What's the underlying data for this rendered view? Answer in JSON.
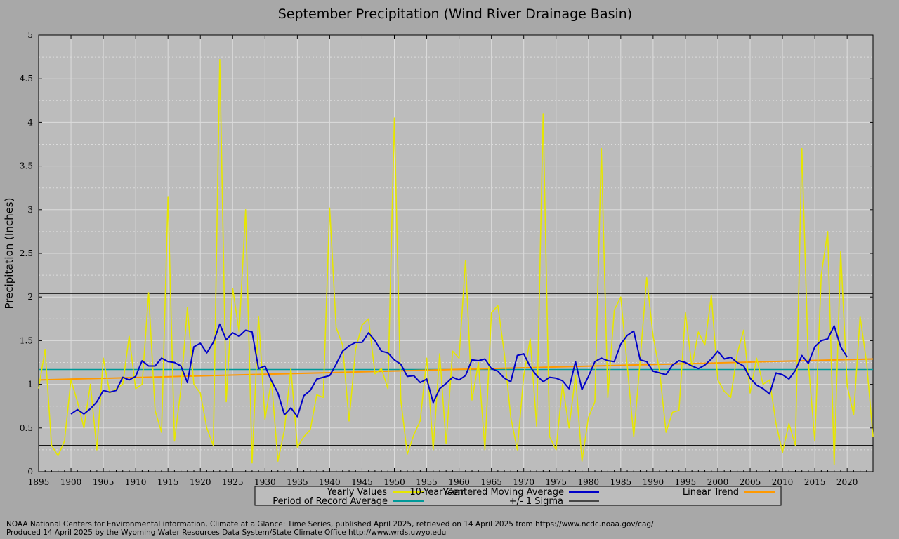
{
  "chart_data": {
    "type": "line",
    "title": "September Precipitation (Wind River Drainage Basin)",
    "xlabel": "Year",
    "ylabel": "Precipitation (Inches)",
    "xlim": [
      1895,
      2024
    ],
    "ylim": [
      0,
      5
    ],
    "grid": true,
    "x_ticks": [
      "1895",
      "1900",
      "1905",
      "1910",
      "1915",
      "1920",
      "1925",
      "1930",
      "1935",
      "1940",
      "1945",
      "1950",
      "1955",
      "1960",
      "1965",
      "1970",
      "1975",
      "1980",
      "1985",
      "1990",
      "1995",
      "2000",
      "2005",
      "2010",
      "2015",
      "2020"
    ],
    "y_ticks": [
      "0",
      "0.5",
      "1",
      "1.5",
      "2",
      "2.5",
      "3",
      "3.5",
      "4",
      "4.5",
      "5"
    ],
    "years": [
      1895,
      1896,
      1897,
      1898,
      1899,
      1900,
      1901,
      1902,
      1903,
      1904,
      1905,
      1906,
      1907,
      1908,
      1909,
      1910,
      1911,
      1912,
      1913,
      1914,
      1915,
      1916,
      1917,
      1918,
      1919,
      1920,
      1921,
      1922,
      1923,
      1924,
      1925,
      1926,
      1927,
      1928,
      1929,
      1930,
      1931,
      1932,
      1933,
      1934,
      1935,
      1936,
      1937,
      1938,
      1939,
      1940,
      1941,
      1942,
      1943,
      1944,
      1945,
      1946,
      1947,
      1948,
      1949,
      1950,
      1951,
      1952,
      1953,
      1954,
      1955,
      1956,
      1957,
      1958,
      1959,
      1960,
      1961,
      1962,
      1963,
      1964,
      1965,
      1966,
      1967,
      1968,
      1969,
      1970,
      1971,
      1972,
      1973,
      1974,
      1975,
      1976,
      1977,
      1978,
      1979,
      1980,
      1981,
      1982,
      1983,
      1984,
      1985,
      1986,
      1987,
      1988,
      1989,
      1990,
      1991,
      1992,
      1993,
      1994,
      1995,
      1996,
      1997,
      1998,
      1999,
      2000,
      2001,
      2002,
      2003,
      2004,
      2005,
      2006,
      2007,
      2008,
      2009,
      2010,
      2011,
      2012,
      2013,
      2014,
      2015,
      2016,
      2017,
      2018,
      2019,
      2020,
      2021,
      2022,
      2023,
      2024
    ],
    "series": [
      {
        "name": "Yearly Values",
        "color": "#e6e600",
        "values": [
          0.95,
          1.4,
          0.3,
          0.18,
          0.35,
          1.05,
          0.8,
          0.5,
          1.0,
          0.25,
          1.3,
          0.9,
          0.95,
          1.0,
          1.55,
          0.95,
          1.0,
          2.05,
          0.7,
          0.45,
          3.15,
          0.35,
          0.95,
          1.88,
          1.0,
          0.9,
          0.5,
          0.3,
          4.72,
          0.8,
          2.1,
          1.6,
          3.0,
          0.1,
          1.78,
          0.6,
          1.05,
          0.12,
          0.48,
          1.18,
          0.28,
          0.4,
          0.48,
          0.88,
          0.85,
          3.02,
          1.65,
          1.45,
          0.58,
          1.4,
          1.68,
          1.75,
          1.12,
          1.18,
          0.95,
          4.05,
          0.82,
          0.2,
          0.42,
          0.58,
          1.3,
          0.25,
          1.35,
          0.32,
          1.38,
          1.3,
          2.42,
          0.82,
          1.25,
          0.25,
          1.82,
          1.9,
          1.35,
          0.62,
          0.25,
          1.1,
          1.52,
          0.52,
          4.1,
          0.4,
          0.25,
          1.0,
          0.5,
          1.1,
          0.12,
          0.62,
          0.8,
          3.7,
          0.85,
          1.85,
          2.0,
          1.22,
          0.4,
          1.28,
          2.22,
          1.55,
          1.15,
          0.45,
          0.68,
          0.7,
          1.82,
          1.2,
          1.6,
          1.45,
          2.02,
          1.05,
          0.92,
          0.85,
          1.35,
          1.62,
          0.9,
          1.3,
          1.0,
          1.05,
          0.55,
          0.22,
          0.55,
          0.3,
          3.7,
          1.25,
          0.35,
          2.25,
          2.75,
          0.08,
          2.52,
          0.98,
          0.65,
          1.78,
          1.25,
          0.4
        ]
      },
      {
        "name": "10-Year Centered Moving Average",
        "color": "#0000c8",
        "start_year": 1900,
        "values": [
          0.66,
          0.71,
          0.66,
          0.72,
          0.8,
          0.93,
          0.91,
          0.93,
          1.08,
          1.05,
          1.09,
          1.27,
          1.21,
          1.21,
          1.3,
          1.26,
          1.25,
          1.21,
          1.02,
          1.43,
          1.47,
          1.36,
          1.48,
          1.69,
          1.51,
          1.59,
          1.55,
          1.62,
          1.6,
          1.18,
          1.21,
          1.04,
          0.9,
          0.65,
          0.73,
          0.63,
          0.87,
          0.93,
          1.06,
          1.08,
          1.1,
          1.23,
          1.38,
          1.44,
          1.48,
          1.48,
          1.59,
          1.5,
          1.38,
          1.36,
          1.28,
          1.23,
          1.09,
          1.1,
          1.02,
          1.06,
          0.79,
          0.95,
          1.01,
          1.08,
          1.05,
          1.1,
          1.28,
          1.27,
          1.29,
          1.18,
          1.15,
          1.07,
          1.03,
          1.33,
          1.35,
          1.2,
          1.1,
          1.03,
          1.08,
          1.07,
          1.04,
          0.95,
          1.26,
          0.94,
          1.09,
          1.26,
          1.3,
          1.27,
          1.26,
          1.46,
          1.56,
          1.61,
          1.28,
          1.26,
          1.15,
          1.13,
          1.11,
          1.22,
          1.27,
          1.25,
          1.21,
          1.18,
          1.22,
          1.29,
          1.38,
          1.29,
          1.31,
          1.25,
          1.21,
          1.07,
          0.99,
          0.95,
          0.89,
          1.13,
          1.11,
          1.06,
          1.16,
          1.33,
          1.24,
          1.43,
          1.5,
          1.52,
          1.67,
          1.43,
          1.31
        ]
      }
    ],
    "linear_trend": {
      "name": "Linear Trend",
      "color": "#ff9900",
      "x": [
        1895,
        2024
      ],
      "y": [
        1.05,
        1.29
      ]
    },
    "period_of_record_average": {
      "name": "Period of Record Average",
      "color": "#009999",
      "value": 1.17
    },
    "sigma_lines": {
      "name": "+/- 1 Sigma",
      "color": "#000000",
      "values": [
        2.04,
        0.3
      ]
    }
  },
  "footer": {
    "line1": "NOAA National Centers for Environmental information, Climate at a Glance: Time Series, published April 2025, retrieved on 14 April 2025 from https://www.ncdc.noaa.gov/cag/",
    "line2": "Produced 14 April 2025 by the Wyoming Water Resources Data System/State Climate Office http://www.wrds.uwyo.edu"
  }
}
